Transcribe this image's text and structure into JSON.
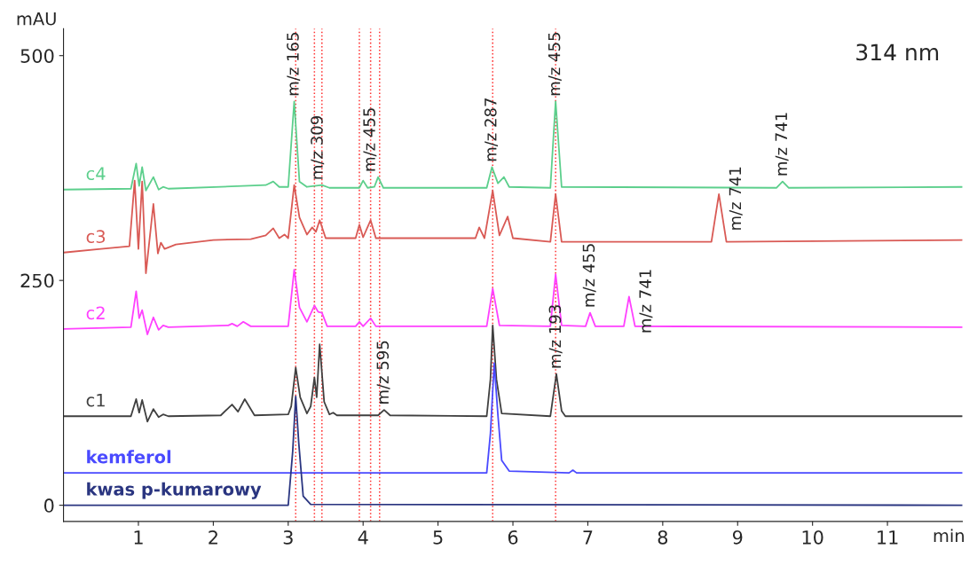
{
  "chart_data": {
    "type": "line",
    "title": "314 nm",
    "xlabel": "min",
    "ylabel": "mAU",
    "xlim": [
      0,
      12
    ],
    "ylim": [
      -18,
      530
    ],
    "xticks": [
      1,
      2,
      3,
      4,
      5,
      6,
      7,
      8,
      9,
      10,
      11
    ],
    "yticks": [
      0,
      250,
      500
    ],
    "grid": false,
    "legend": false,
    "marker": "none",
    "line_style": "solid",
    "series": [
      {
        "name": "c4",
        "color": "#5ccf8c",
        "x": [
          0,
          0.9,
          0.97,
          1.01,
          1.05,
          1.1,
          1.2,
          1.27,
          1.33,
          1.4,
          2.7,
          2.8,
          2.88,
          3.0,
          3.08,
          3.15,
          3.25,
          3.35,
          3.45,
          3.55,
          3.95,
          4.0,
          4.06,
          4.15,
          4.2,
          4.27,
          5.65,
          5.72,
          5.8,
          5.88,
          5.95,
          6.5,
          6.57,
          6.65,
          9.52,
          9.6,
          9.68,
          12
        ],
        "values": [
          351,
          352,
          380,
          355,
          376,
          350,
          365,
          351,
          354,
          352,
          356,
          360,
          354,
          354,
          449,
          360,
          354,
          355,
          356,
          353,
          353,
          361,
          353,
          354,
          365,
          353,
          353,
          376,
          358,
          365,
          354,
          353,
          449,
          354,
          353,
          360,
          353,
          354
        ]
      },
      {
        "name": "c3",
        "color": "#d95a55",
        "x": [
          0,
          0.5,
          0.88,
          0.95,
          1.0,
          1.05,
          1.1,
          1.2,
          1.26,
          1.3,
          1.35,
          1.5,
          2.0,
          2.5,
          2.7,
          2.8,
          2.88,
          2.95,
          3.0,
          3.08,
          3.15,
          3.25,
          3.32,
          3.37,
          3.42,
          3.5,
          3.9,
          3.95,
          4.0,
          4.1,
          4.17,
          5.5,
          5.55,
          5.62,
          5.73,
          5.82,
          5.93,
          6.0,
          6.5,
          6.57,
          6.65,
          8.65,
          8.75,
          8.85,
          12
        ],
        "values": [
          281,
          285,
          288,
          361,
          285,
          360,
          258,
          335,
          280,
          292,
          285,
          290,
          295,
          296,
          300,
          308,
          297,
          301,
          297,
          356,
          320,
          301,
          309,
          304,
          317,
          297,
          297,
          312,
          298,
          317,
          297,
          297,
          309,
          297,
          350,
          300,
          321,
          297,
          293,
          346,
          293,
          293,
          346,
          293,
          295
        ]
      },
      {
        "name": "c2",
        "color": "#ff40ff",
        "x": [
          0,
          0.9,
          0.97,
          1.01,
          1.05,
          1.12,
          1.2,
          1.27,
          1.33,
          1.4,
          2.2,
          2.25,
          2.32,
          2.4,
          2.5,
          3.0,
          3.08,
          3.15,
          3.25,
          3.35,
          3.4,
          3.45,
          3.52,
          3.9,
          3.95,
          4.0,
          4.1,
          4.17,
          5.65,
          5.73,
          5.82,
          6.5,
          6.57,
          6.65,
          6.97,
          7.03,
          7.1,
          7.48,
          7.55,
          7.63,
          12
        ],
        "values": [
          196,
          198,
          238,
          208,
          217,
          190,
          209,
          195,
          200,
          198,
          200,
          202,
          199,
          204,
          199,
          199,
          262,
          220,
          204,
          222,
          215,
          214,
          199,
          199,
          204,
          199,
          208,
          199,
          199,
          241,
          200,
          199,
          257,
          200,
          199,
          214,
          199,
          199,
          232,
          199,
          198
        ]
      },
      {
        "name": "c1",
        "color": "#404040",
        "x": [
          0,
          0.9,
          0.97,
          1.01,
          1.05,
          1.12,
          1.2,
          1.27,
          1.33,
          1.4,
          2.1,
          2.25,
          2.33,
          2.42,
          2.55,
          3.0,
          3.04,
          3.1,
          3.16,
          3.25,
          3.3,
          3.35,
          3.38,
          3.42,
          3.48,
          3.55,
          3.6,
          3.65,
          4.2,
          4.28,
          4.36,
          5.65,
          5.7,
          5.73,
          5.78,
          5.85,
          6.5,
          6.58,
          6.65,
          6.7,
          12
        ],
        "values": [
          99,
          99,
          118,
          103,
          117,
          93,
          107,
          98,
          101,
          99,
          100,
          112,
          104,
          118,
          100,
          101,
          110,
          153,
          120,
          102,
          110,
          142,
          120,
          179,
          115,
          101,
          103,
          100,
          100,
          106,
          100,
          99,
          140,
          200,
          140,
          102,
          99,
          146,
          105,
          99,
          99
        ]
      },
      {
        "name": "kemferol",
        "color": "#4a4aff",
        "x": [
          0,
          5.65,
          5.7,
          5.75,
          5.8,
          5.85,
          5.95,
          6.75,
          6.8,
          6.85,
          12
        ],
        "values": [
          36,
          36,
          80,
          158,
          100,
          50,
          38,
          36,
          39,
          36,
          36
        ]
      },
      {
        "name": "kwas p-kumarowy",
        "color": "#2a3580",
        "x": [
          0,
          3.0,
          3.06,
          3.1,
          3.14,
          3.2,
          3.3,
          12
        ],
        "values": [
          0,
          0,
          60,
          121,
          70,
          10,
          1,
          0
        ]
      }
    ],
    "ref_lines": [
      {
        "axis": "x",
        "value": 3.1,
        "color": "#ff3333",
        "line_style": "dotted"
      },
      {
        "axis": "x",
        "value": 3.35,
        "color": "#ff3333",
        "line_style": "dotted"
      },
      {
        "axis": "x",
        "value": 3.45,
        "color": "#ff3333",
        "line_style": "dotted"
      },
      {
        "axis": "x",
        "value": 3.95,
        "color": "#ff3333",
        "line_style": "dotted"
      },
      {
        "axis": "x",
        "value": 4.1,
        "color": "#ff3333",
        "line_style": "dotted"
      },
      {
        "axis": "x",
        "value": 4.22,
        "color": "#ff3333",
        "line_style": "dotted"
      },
      {
        "axis": "x",
        "value": 5.73,
        "color": "#ff3333",
        "line_style": "dotted"
      },
      {
        "axis": "x",
        "value": 6.57,
        "color": "#ff3333",
        "line_style": "dotted"
      }
    ],
    "annotations": [
      {
        "text": "m/z 165",
        "x": 3.08,
        "y": 449
      },
      {
        "text": "m/z 309",
        "x": 3.4,
        "y": 356
      },
      {
        "text": "m/z 455",
        "x": 4.1,
        "y": 365
      },
      {
        "text": "m/z 287",
        "x": 5.72,
        "y": 376
      },
      {
        "text": "m/z 455",
        "x": 6.57,
        "y": 449
      },
      {
        "text": "m/z 741",
        "x": 8.75,
        "y": 346
      },
      {
        "text": "m/z 741",
        "x": 9.6,
        "y": 360
      },
      {
        "text": "m/z 455",
        "x": 7.03,
        "y": 214
      },
      {
        "text": "m/z 741",
        "x": 7.55,
        "y": 232
      },
      {
        "text": "m/z 595",
        "x": 4.28,
        "y": 106
      },
      {
        "text": "m/z 193",
        "x": 6.58,
        "y": 146
      }
    ]
  }
}
